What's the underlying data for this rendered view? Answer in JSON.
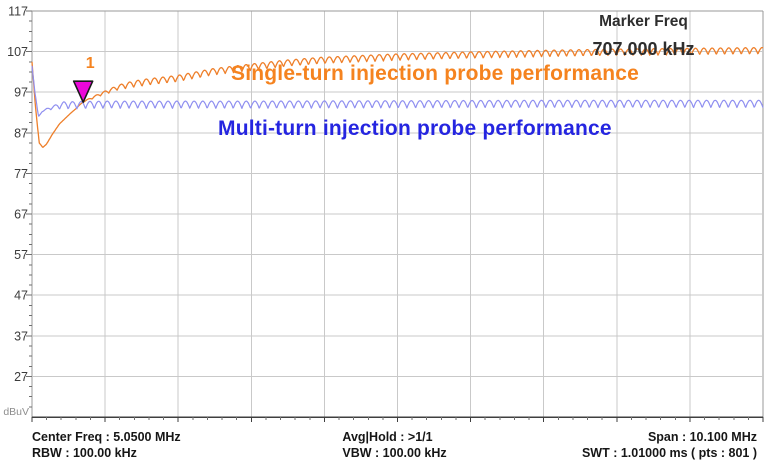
{
  "readout": {
    "label": "Marker Freq",
    "value": "707.000 kHz"
  },
  "annotations": {
    "single_turn": "Single-turn injection probe performance",
    "multi_turn": "Multi-turn injection probe performance"
  },
  "axis_unit": "dBuV",
  "footer": {
    "left": {
      "line1": "Center Freq : 5.0500 MHz",
      "line2": "RBW : 100.00 kHz"
    },
    "center": {
      "line1": "Avg|Hold : >1/1",
      "line2": "VBW : 100.00 kHz"
    },
    "right": {
      "line1": "Span : 10.100 MHz",
      "line2": "SWT : 1.01000 ms ( pts : 801 )"
    }
  },
  "colors": {
    "single_turn_trace": "#ee7f2a",
    "multi_turn_trace": "#8f8ff0",
    "single_turn_label": "#f5831f",
    "multi_turn_label": "#2525e0",
    "marker_fill": "#ec07da",
    "marker_border": "#1a1a1a",
    "grid_major": "#c9c9c9",
    "grid_border": "#9a9a9a",
    "axis_bottom": "#3f3f3f",
    "tick": "#6f6f6f",
    "tick_label": "#3b3b3b"
  },
  "chart_data": {
    "type": "line",
    "title": "",
    "xlabel": "",
    "ylabel": "dBuV",
    "x_range_mhz": [
      0,
      10.1
    ],
    "y_range_dbuv": [
      17,
      117
    ],
    "y_major_tick_labels": [
      117,
      107,
      97,
      87,
      77,
      67,
      57,
      47,
      37,
      27
    ],
    "y_minor_step_db": 2.5,
    "x_divisions": 10,
    "x_minor_per_division": 5,
    "grid": true,
    "legend_position": "none",
    "series": [
      {
        "name": "Single-turn injection probe performance",
        "color_key": "single_turn_trace",
        "base_points_mhz_dbuv": [
          [
            0.0,
            104.5
          ],
          [
            0.05,
            93.0
          ],
          [
            0.1,
            84.5
          ],
          [
            0.15,
            83.4
          ],
          [
            0.2,
            84.2
          ],
          [
            0.28,
            86.6
          ],
          [
            0.38,
            89.2
          ],
          [
            0.52,
            91.6
          ],
          [
            0.707,
            94.5
          ],
          [
            0.93,
            96.0
          ],
          [
            1.2,
            97.6
          ],
          [
            1.6,
            98.7
          ],
          [
            2.0,
            99.5
          ],
          [
            2.5,
            101.2
          ],
          [
            3.0,
            102.3
          ],
          [
            3.5,
            103.3
          ],
          [
            4.0,
            104.0
          ],
          [
            5.0,
            104.8
          ],
          [
            6.0,
            105.3
          ],
          [
            7.0,
            105.7
          ],
          [
            8.0,
            106.0
          ],
          [
            10.1,
            106.4
          ]
        ],
        "ripple": {
          "amplitude_db": 1.6,
          "period_mhz": 0.115,
          "start_mhz": 0.6,
          "ramp_mhz": 0.8
        }
      },
      {
        "name": "Multi-turn injection probe performance",
        "color_key": "multi_turn_trace",
        "base_points_mhz_dbuv": [
          [
            0.0,
            103.5
          ],
          [
            0.04,
            97.0
          ],
          [
            0.09,
            91.0
          ],
          [
            0.14,
            92.2
          ],
          [
            0.2,
            92.6
          ],
          [
            0.35,
            92.8
          ],
          [
            1.0,
            93.0
          ],
          [
            3.0,
            93.0
          ],
          [
            5.0,
            93.1
          ],
          [
            7.0,
            93.2
          ],
          [
            10.1,
            93.2
          ]
        ],
        "ripple": {
          "amplitude_db": 1.8,
          "period_mhz": 0.12,
          "start_mhz": 0.14,
          "ramp_mhz": 0.3
        }
      }
    ],
    "marker": {
      "id": "1",
      "freq_mhz": 0.707,
      "freq_text": "707.000 kHz",
      "on_series": 0
    }
  }
}
